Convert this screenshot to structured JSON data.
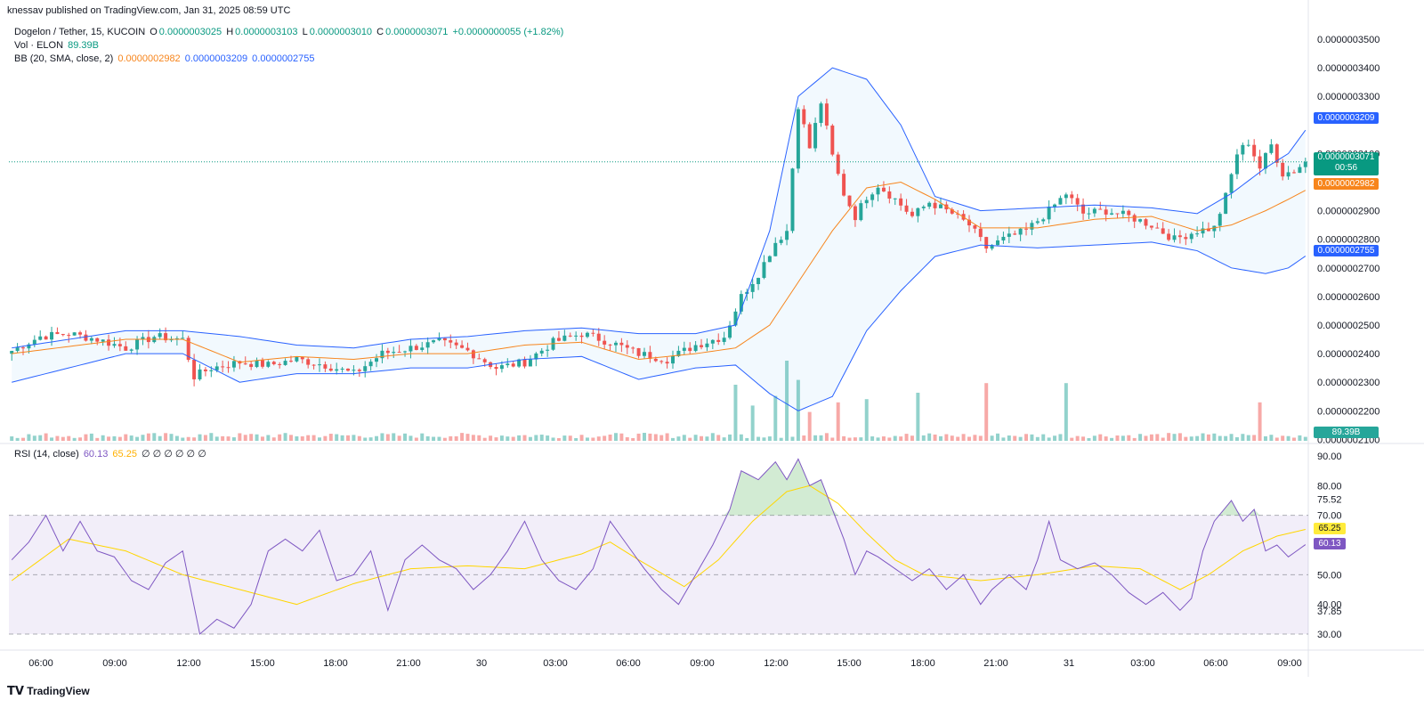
{
  "header": {
    "published": "knessav published on TradingView.com, Jan 31, 2025 08:59 UTC",
    "symbol": "Dogelon / Tether, 15, KUCOIN",
    "o_label": "O",
    "o_value": "0.0000003025",
    "h_label": "H",
    "h_value": "0.0000003103",
    "l_label": "L",
    "l_value": "0.0000003010",
    "c_label": "C",
    "c_value": "0.0000003071",
    "change": "+0.0000000055 (+1.82%)",
    "vol_label": "Vol · ELON",
    "vol_value": "89.39B",
    "bb_label": "BB (20, SMA, close, 2)",
    "bb_basis": "0.0000002982",
    "bb_upper": "0.0000003209",
    "bb_lower": "0.0000002755",
    "rsi_label": "RSI (14, close)",
    "rsi_value": "60.13",
    "rsi_ma": "65.25",
    "rsi_extra": "∅ ∅ ∅ ∅ ∅ ∅"
  },
  "tags": {
    "upper": "0.0000003209",
    "price": "0.0000003071",
    "countdown": "00:56",
    "basis": "0.0000002982",
    "lower": "0.0000002755",
    "volume": "89.39B",
    "rsi": "60.13",
    "rsi_ma": "65.25"
  },
  "footer": {
    "logo_text": "TradingView"
  },
  "colors": {
    "up": "#26a69a",
    "down": "#ef5350",
    "bb_line": "#2962ff",
    "basis": "#f7851c",
    "rsi": "#7e57c2",
    "rsi_ma": "#ffd600",
    "price_line": "#089981"
  },
  "chart_data": [
    {
      "type": "candlestick",
      "title": "Dogelon / Tether, 15, KUCOIN",
      "x_tick_labels": [
        "06:00",
        "09:00",
        "12:00",
        "15:00",
        "18:00",
        "21:00",
        "30",
        "03:00",
        "06:00",
        "09:00",
        "12:00",
        "15:00",
        "18:00",
        "21:00",
        "31",
        "03:00",
        "06:00",
        "09:00"
      ],
      "y_tick_labels": [
        "0.0000003500",
        "0.0000003400",
        "0.0000003300",
        "0.0000003100",
        "0.0000002900",
        "0.0000002800",
        "0.0000002700",
        "0.0000002600",
        "0.0000002500",
        "0.0000002400",
        "0.0000002300",
        "0.0000002200",
        "0.0000002100"
      ],
      "y_ticks": [
        3.5e-07,
        3.4e-07,
        3.3e-07,
        3.1e-07,
        2.9e-07,
        2.8e-07,
        2.7e-07,
        2.6e-07,
        2.5e-07,
        2.4e-07,
        2.3e-07,
        2.2e-07,
        2.1e-07
      ],
      "ylim": [
        2.095e-07,
        3.55e-07
      ],
      "close_anchor_points": [
        [
          0,
          2.41e-07
        ],
        [
          5,
          2.46e-07
        ],
        [
          10,
          2.47e-07
        ],
        [
          15,
          2.45e-07
        ],
        [
          20,
          2.42e-07
        ],
        [
          25,
          2.46e-07
        ],
        [
          30,
          2.45e-07
        ],
        [
          32,
          2.32e-07
        ],
        [
          35,
          2.35e-07
        ],
        [
          40,
          2.37e-07
        ],
        [
          45,
          2.36e-07
        ],
        [
          50,
          2.38e-07
        ],
        [
          55,
          2.36e-07
        ],
        [
          60,
          2.33e-07
        ],
        [
          65,
          2.4e-07
        ],
        [
          70,
          2.42e-07
        ],
        [
          75,
          2.44e-07
        ],
        [
          80,
          2.41e-07
        ],
        [
          85,
          2.35e-07
        ],
        [
          90,
          2.37e-07
        ],
        [
          95,
          2.44e-07
        ],
        [
          100,
          2.47e-07
        ],
        [
          105,
          2.44e-07
        ],
        [
          110,
          2.4e-07
        ],
        [
          115,
          2.38e-07
        ],
        [
          120,
          2.43e-07
        ],
        [
          125,
          2.46e-07
        ],
        [
          128,
          2.6e-07
        ],
        [
          131,
          2.68e-07
        ],
        [
          134,
          2.79e-07
        ],
        [
          136,
          2.83e-07
        ],
        [
          138,
          3.27e-07
        ],
        [
          140,
          3.12e-07
        ],
        [
          142,
          3.28e-07
        ],
        [
          144,
          3.09e-07
        ],
        [
          146,
          2.96e-07
        ],
        [
          148,
          2.88e-07
        ],
        [
          150,
          2.95e-07
        ],
        [
          152,
          2.99e-07
        ],
        [
          155,
          2.94e-07
        ],
        [
          158,
          2.88e-07
        ],
        [
          161,
          2.93e-07
        ],
        [
          165,
          2.89e-07
        ],
        [
          168,
          2.85e-07
        ],
        [
          171,
          2.77e-07
        ],
        [
          174,
          2.8e-07
        ],
        [
          178,
          2.83e-07
        ],
        [
          182,
          2.9e-07
        ],
        [
          185,
          2.96e-07
        ],
        [
          188,
          2.89e-07
        ],
        [
          192,
          2.9e-07
        ],
        [
          196,
          2.88e-07
        ],
        [
          200,
          2.85e-07
        ],
        [
          204,
          2.8e-07
        ],
        [
          208,
          2.83e-07
        ],
        [
          211,
          2.84e-07
        ],
        [
          213,
          2.95e-07
        ],
        [
          215,
          3.1e-07
        ],
        [
          217,
          3.14e-07
        ],
        [
          219,
          3.05e-07
        ],
        [
          221,
          3.13e-07
        ],
        [
          223,
          3.03e-07
        ],
        [
          225,
          3.04e-07
        ],
        [
          227,
          3.071e-07
        ]
      ],
      "bollinger": {
        "upper": [
          [
            0,
            2.42e-07
          ],
          [
            20,
            2.48e-07
          ],
          [
            30,
            2.48e-07
          ],
          [
            40,
            2.46e-07
          ],
          [
            50,
            2.43e-07
          ],
          [
            60,
            2.42e-07
          ],
          [
            70,
            2.45e-07
          ],
          [
            80,
            2.46e-07
          ],
          [
            90,
            2.48e-07
          ],
          [
            100,
            2.49e-07
          ],
          [
            110,
            2.47e-07
          ],
          [
            120,
            2.47e-07
          ],
          [
            127,
            2.5e-07
          ],
          [
            133,
            2.83e-07
          ],
          [
            138,
            3.3e-07
          ],
          [
            144,
            3.4e-07
          ],
          [
            150,
            3.36e-07
          ],
          [
            156,
            3.2e-07
          ],
          [
            162,
            2.95e-07
          ],
          [
            170,
            2.9e-07
          ],
          [
            180,
            2.91e-07
          ],
          [
            190,
            2.92e-07
          ],
          [
            200,
            2.91e-07
          ],
          [
            208,
            2.89e-07
          ],
          [
            214,
            2.96e-07
          ],
          [
            220,
            3.05e-07
          ],
          [
            224,
            3.1e-07
          ],
          [
            228,
            3.209e-07
          ]
        ],
        "basis": [
          [
            0,
            2.4e-07
          ],
          [
            20,
            2.45e-07
          ],
          [
            30,
            2.45e-07
          ],
          [
            40,
            2.37e-07
          ],
          [
            50,
            2.39e-07
          ],
          [
            60,
            2.38e-07
          ],
          [
            70,
            2.4e-07
          ],
          [
            80,
            2.4e-07
          ],
          [
            90,
            2.43e-07
          ],
          [
            100,
            2.44e-07
          ],
          [
            110,
            2.38e-07
          ],
          [
            120,
            2.4e-07
          ],
          [
            127,
            2.42e-07
          ],
          [
            133,
            2.5e-07
          ],
          [
            138,
            2.65e-07
          ],
          [
            144,
            2.83e-07
          ],
          [
            150,
            2.98e-07
          ],
          [
            156,
            3e-07
          ],
          [
            162,
            2.94e-07
          ],
          [
            170,
            2.84e-07
          ],
          [
            180,
            2.84e-07
          ],
          [
            190,
            2.87e-07
          ],
          [
            200,
            2.88e-07
          ],
          [
            208,
            2.83e-07
          ],
          [
            214,
            2.85e-07
          ],
          [
            220,
            2.9e-07
          ],
          [
            224,
            2.94e-07
          ],
          [
            228,
            2.982e-07
          ]
        ],
        "lower": [
          [
            0,
            2.3e-07
          ],
          [
            20,
            2.4e-07
          ],
          [
            30,
            2.4e-07
          ],
          [
            40,
            2.3e-07
          ],
          [
            50,
            2.33e-07
          ],
          [
            60,
            2.33e-07
          ],
          [
            70,
            2.35e-07
          ],
          [
            80,
            2.35e-07
          ],
          [
            90,
            2.38e-07
          ],
          [
            100,
            2.39e-07
          ],
          [
            110,
            2.31e-07
          ],
          [
            120,
            2.35e-07
          ],
          [
            127,
            2.36e-07
          ],
          [
            133,
            2.26e-07
          ],
          [
            138,
            2.2e-07
          ],
          [
            144,
            2.25e-07
          ],
          [
            150,
            2.48e-07
          ],
          [
            156,
            2.62e-07
          ],
          [
            162,
            2.74e-07
          ],
          [
            170,
            2.78e-07
          ],
          [
            180,
            2.77e-07
          ],
          [
            190,
            2.78e-07
          ],
          [
            200,
            2.79e-07
          ],
          [
            208,
            2.76e-07
          ],
          [
            214,
            2.7e-07
          ],
          [
            220,
            2.68e-07
          ],
          [
            224,
            2.7e-07
          ],
          [
            228,
            2.755e-07
          ]
        ]
      },
      "last_price": 3.071e-07
    },
    {
      "type": "bar",
      "title": "Vol · ELON",
      "last_value": "89.39B",
      "spike_bars": [
        [
          127,
          3.5
        ],
        [
          130,
          2.2
        ],
        [
          134,
          2.8
        ],
        [
          136,
          5.0
        ],
        [
          138,
          3.8
        ],
        [
          140,
          1.8
        ],
        [
          145,
          2.4
        ],
        [
          150,
          2.6
        ],
        [
          159,
          3.0
        ],
        [
          171,
          3.6
        ],
        [
          185,
          3.6
        ],
        [
          219,
          2.4
        ]
      ]
    },
    {
      "type": "line",
      "title": "RSI (14, close)",
      "y_tick_labels": [
        "90.00",
        "80.00",
        "75.52",
        "70.00",
        "50.00",
        "40.00",
        "37.85",
        "30.00"
      ],
      "y_ticks": [
        90,
        80,
        75.52,
        70,
        50,
        40,
        37.85,
        30
      ],
      "ylim": [
        27,
        93
      ],
      "band": [
        30,
        70
      ],
      "midline": 50,
      "rsi_anchor_points": [
        [
          0,
          55
        ],
        [
          3,
          61
        ],
        [
          6,
          70
        ],
        [
          9,
          58
        ],
        [
          12,
          68
        ],
        [
          15,
          58
        ],
        [
          18,
          56
        ],
        [
          21,
          48
        ],
        [
          24,
          45
        ],
        [
          27,
          54
        ],
        [
          30,
          58
        ],
        [
          33,
          30
        ],
        [
          36,
          35
        ],
        [
          39,
          32
        ],
        [
          42,
          40
        ],
        [
          45,
          58
        ],
        [
          48,
          62
        ],
        [
          51,
          58
        ],
        [
          54,
          65
        ],
        [
          57,
          48
        ],
        [
          60,
          50
        ],
        [
          63,
          58
        ],
        [
          66,
          38
        ],
        [
          69,
          55
        ],
        [
          72,
          60
        ],
        [
          75,
          55
        ],
        [
          78,
          52
        ],
        [
          81,
          45
        ],
        [
          84,
          50
        ],
        [
          87,
          58
        ],
        [
          90,
          68
        ],
        [
          93,
          55
        ],
        [
          96,
          48
        ],
        [
          99,
          45
        ],
        [
          102,
          52
        ],
        [
          105,
          68
        ],
        [
          108,
          60
        ],
        [
          111,
          52
        ],
        [
          114,
          45
        ],
        [
          117,
          40
        ],
        [
          120,
          50
        ],
        [
          123,
          60
        ],
        [
          126,
          72
        ],
        [
          128,
          85
        ],
        [
          131,
          82
        ],
        [
          134,
          88
        ],
        [
          136,
          82
        ],
        [
          138,
          89
        ],
        [
          140,
          80
        ],
        [
          142,
          82
        ],
        [
          144,
          72
        ],
        [
          146,
          62
        ],
        [
          148,
          50
        ],
        [
          150,
          58
        ],
        [
          152,
          56
        ],
        [
          155,
          52
        ],
        [
          158,
          48
        ],
        [
          161,
          52
        ],
        [
          164,
          45
        ],
        [
          167,
          50
        ],
        [
          170,
          40
        ],
        [
          172,
          45
        ],
        [
          175,
          50
        ],
        [
          178,
          45
        ],
        [
          180,
          55
        ],
        [
          182,
          68
        ],
        [
          184,
          55
        ],
        [
          187,
          52
        ],
        [
          190,
          54
        ],
        [
          193,
          50
        ],
        [
          196,
          44
        ],
        [
          199,
          40
        ],
        [
          202,
          44
        ],
        [
          205,
          38
        ],
        [
          207,
          42
        ],
        [
          209,
          58
        ],
        [
          211,
          68
        ],
        [
          214,
          75
        ],
        [
          216,
          68
        ],
        [
          218,
          72
        ],
        [
          220,
          58
        ],
        [
          222,
          60
        ],
        [
          224,
          56
        ],
        [
          227,
          60.13
        ]
      ],
      "ma_anchor_points": [
        [
          0,
          48
        ],
        [
          10,
          62
        ],
        [
          20,
          58
        ],
        [
          30,
          50
        ],
        [
          40,
          45
        ],
        [
          50,
          40
        ],
        [
          60,
          47
        ],
        [
          70,
          52
        ],
        [
          80,
          53
        ],
        [
          90,
          52
        ],
        [
          100,
          57
        ],
        [
          105,
          61
        ],
        [
          110,
          55
        ],
        [
          118,
          46
        ],
        [
          124,
          55
        ],
        [
          130,
          68
        ],
        [
          136,
          78
        ],
        [
          140,
          80
        ],
        [
          145,
          74
        ],
        [
          150,
          64
        ],
        [
          155,
          55
        ],
        [
          160,
          50
        ],
        [
          170,
          48
        ],
        [
          180,
          50
        ],
        [
          190,
          53
        ],
        [
          198,
          52
        ],
        [
          205,
          45
        ],
        [
          210,
          50
        ],
        [
          216,
          58
        ],
        [
          222,
          63
        ],
        [
          227,
          65.25
        ]
      ]
    }
  ]
}
